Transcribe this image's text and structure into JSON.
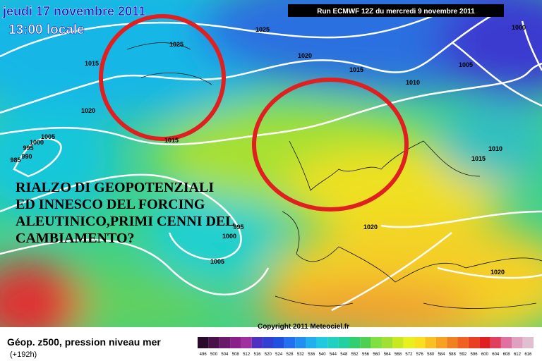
{
  "header": {
    "date": "jeudi 17 novembre 2011",
    "time": "13:00 locale",
    "run": "Run ECMWF 12Z du mercredi 9 novembre 2011"
  },
  "annotation": {
    "lines": [
      "RIALZO DI GEOPOTENZIALI",
      "ED INNESCO DEL FORCING",
      "ALEUTINICO,PRIMI CENNI DEL",
      "CAMBIAMENTO?"
    ]
  },
  "isobars": [
    "1025",
    "1015",
    "1025",
    "1020",
    "1015",
    "1005",
    "1000",
    "1010",
    "1020",
    "1005",
    "1000",
    "995",
    "990",
    "985",
    "1015",
    "1010",
    "1015",
    "995",
    "1000",
    "1005",
    "1020",
    "1020"
  ],
  "copyright": "Copyright 2011 Meteociel.fr",
  "legend": {
    "title": "Géop. z500, pression niveau mer",
    "subtitle": "(+192h)",
    "scale": [
      496,
      500,
      504,
      508,
      512,
      516,
      520,
      524,
      528,
      532,
      536,
      540,
      544,
      548,
      552,
      556,
      560,
      564,
      568,
      572,
      576,
      580,
      584,
      588,
      592,
      596,
      600,
      604,
      608,
      612,
      616
    ]
  }
}
